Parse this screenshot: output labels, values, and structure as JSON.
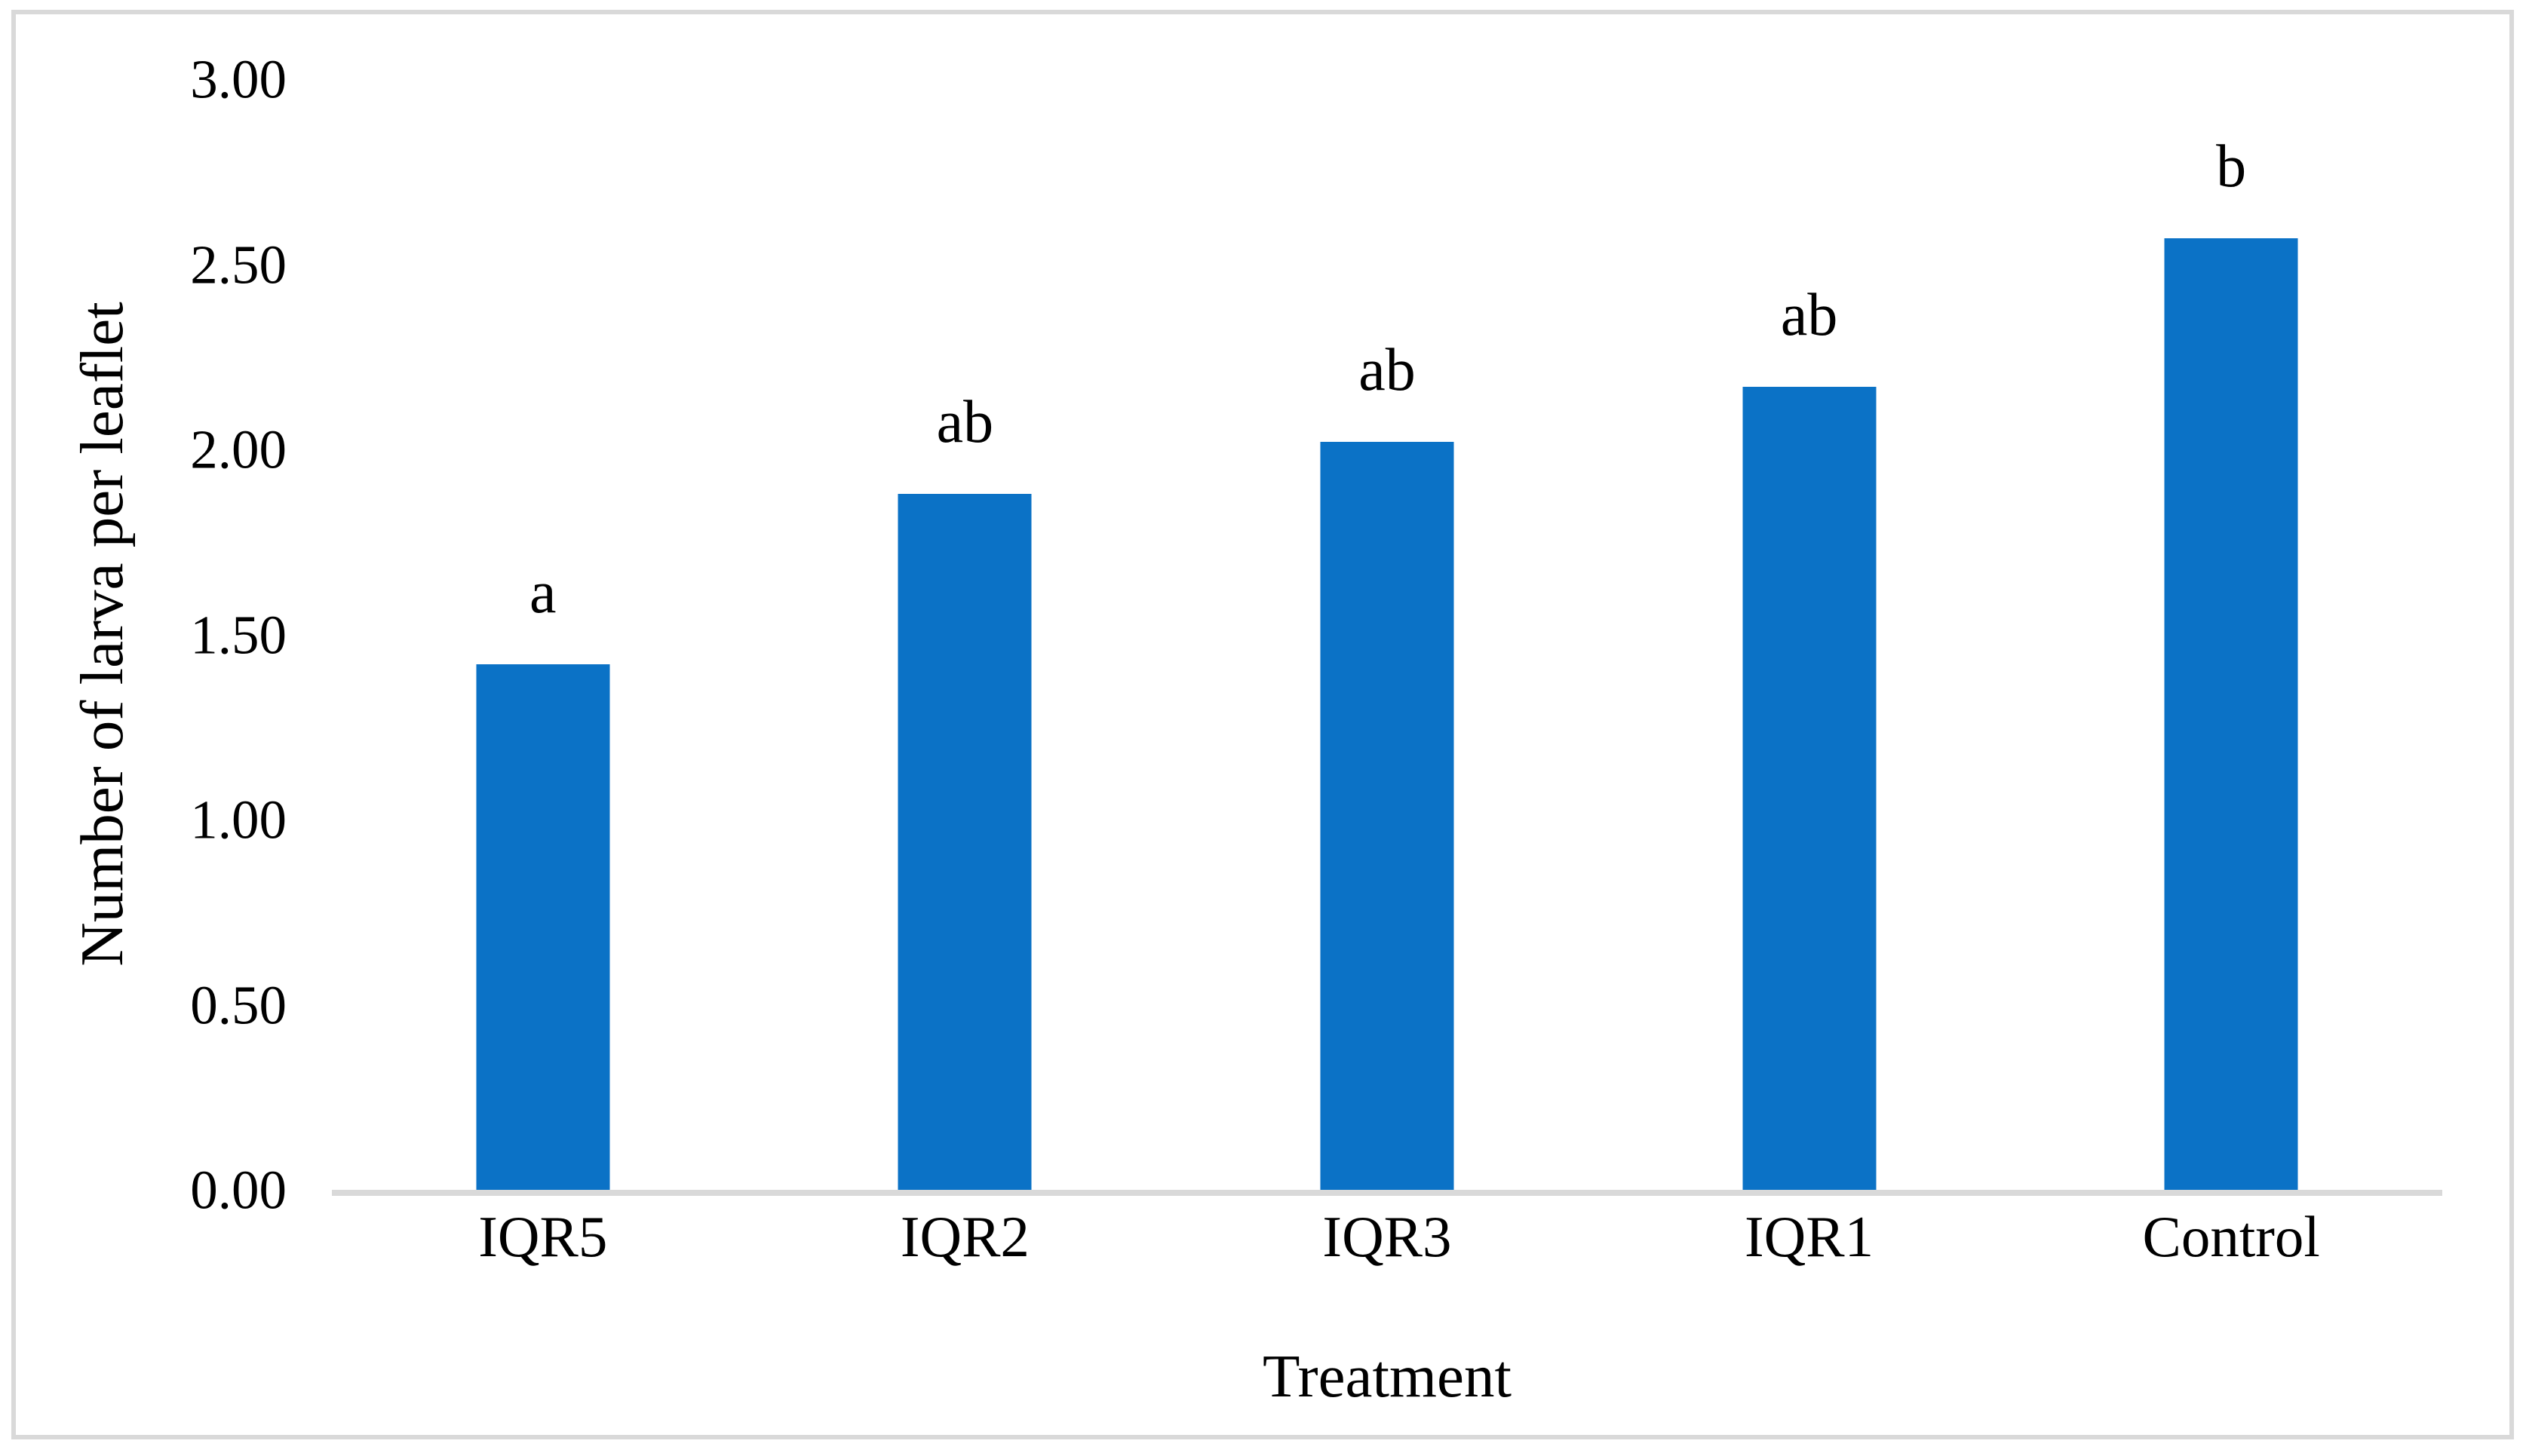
{
  "figure": {
    "background_color": "#ffffff",
    "border_color": "#d9d9d9"
  },
  "chart_data": {
    "type": "bar",
    "title": "",
    "categories": [
      "IQR5",
      "IQR2",
      "IQR3",
      "IQR1",
      "Control"
    ],
    "values": [
      1.42,
      1.88,
      2.02,
      2.17,
      2.57
    ],
    "significance_letters": [
      "a",
      "ab",
      "ab",
      "ab",
      "b"
    ],
    "xlabel": "Treatment",
    "ylabel": "Number of larva per leaflet",
    "ylim": [
      0,
      3
    ],
    "ytick_step": 0.5,
    "ytick_labels": [
      "3.00",
      "2.50",
      "2.00",
      "1.50",
      "1.00",
      "0.50",
      "0.00"
    ],
    "bar_color": "#0b72c6",
    "axis_line_color": "#d9d9d9",
    "grid": false,
    "legend_position": "none"
  }
}
